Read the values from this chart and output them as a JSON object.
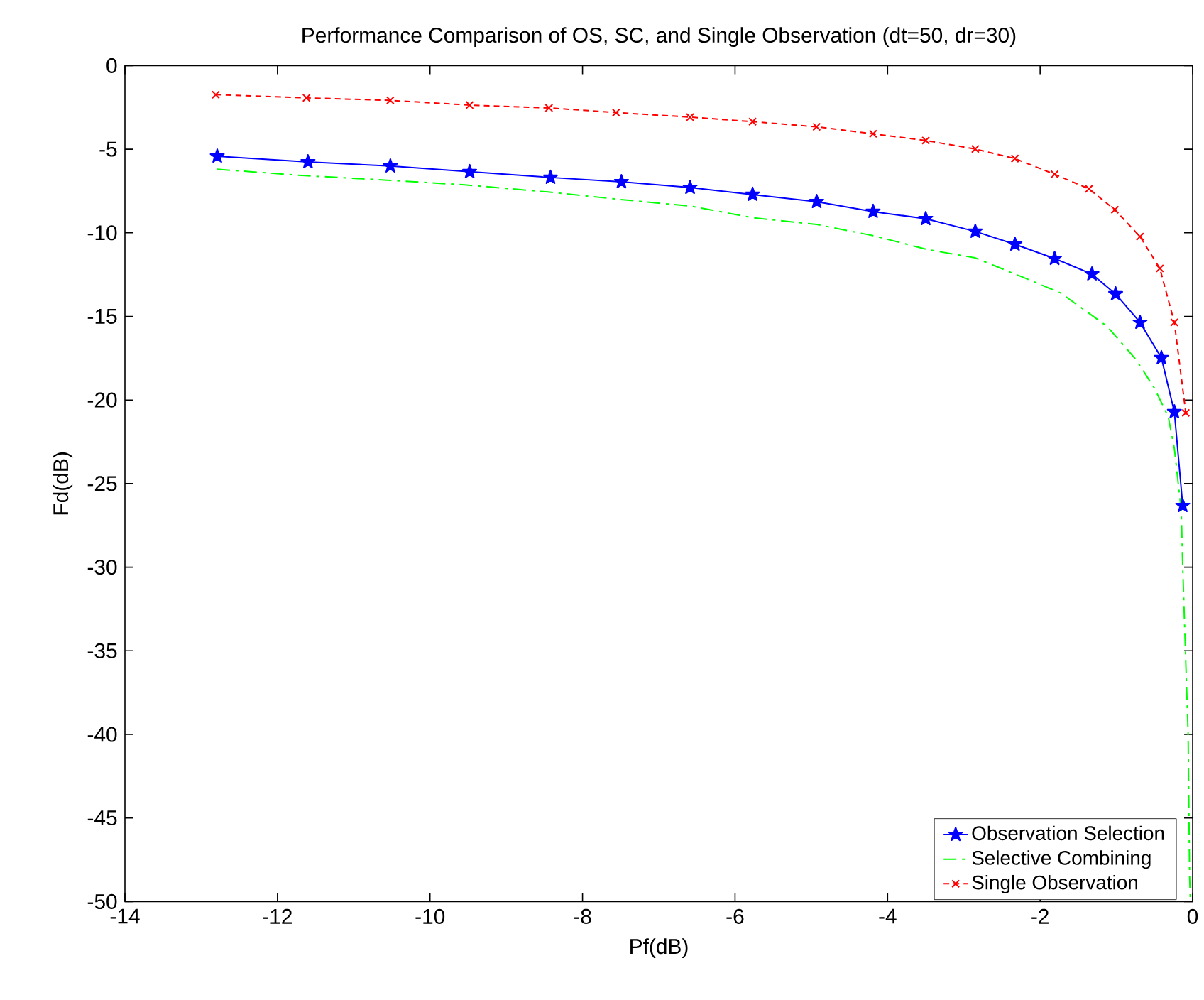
{
  "chart_data": {
    "type": "line",
    "title": "Performance Comparison of OS, SC, and Single Observation (dt=50, dr=30)",
    "xlabel": "Pf(dB)",
    "ylabel": "Fd(dB)",
    "xlim": [
      -14,
      0
    ],
    "ylim": [
      -50,
      0
    ],
    "xticks": [
      -14,
      -12,
      -10,
      -8,
      -6,
      -4,
      -2,
      0
    ],
    "yticks": [
      -50,
      -45,
      -40,
      -35,
      -30,
      -25,
      -20,
      -15,
      -10,
      -5,
      0
    ],
    "grid": false,
    "legend": "bottom right",
    "series": [
      {
        "name": "Observation Selection",
        "color": "#0000ff",
        "marker": "star",
        "line_style": "solid",
        "x": [
          -12.79,
          -11.6,
          -10.52,
          -9.48,
          -8.42,
          -7.49,
          -6.59,
          -5.77,
          -4.93,
          -4.19,
          -3.5,
          -2.85,
          -2.33,
          -1.81,
          -1.32,
          -1.01,
          -0.69,
          -0.41,
          -0.24,
          -0.13
        ],
        "values": [
          -5.42,
          -5.76,
          -6.01,
          -6.35,
          -6.69,
          -6.95,
          -7.29,
          -7.71,
          -8.14,
          -8.73,
          -9.16,
          -9.92,
          -10.69,
          -11.54,
          -12.47,
          -13.66,
          -15.36,
          -17.48,
          -20.71,
          -26.32
        ]
      },
      {
        "name": "Selective Combining",
        "color": "#00ff00",
        "marker": "none",
        "line_style": "dashdot",
        "x": [
          -12.79,
          -11.68,
          -10.56,
          -9.52,
          -8.45,
          -7.52,
          -6.59,
          -5.77,
          -4.93,
          -4.19,
          -3.48,
          -2.85,
          -2.23,
          -1.73,
          -1.12,
          -0.74,
          -0.5,
          -0.32,
          -0.24,
          -0.15,
          -0.13,
          -0.09,
          -0.06,
          -0.04,
          -0.03
        ],
        "values": [
          -6.2,
          -6.57,
          -6.85,
          -7.14,
          -7.56,
          -8.0,
          -8.4,
          -9.1,
          -9.5,
          -10.17,
          -11.0,
          -11.5,
          -12.65,
          -13.6,
          -15.6,
          -17.6,
          -19.3,
          -21.0,
          -22.9,
          -26.6,
          -30.0,
          -35.7,
          -39.9,
          -48.5,
          -50
        ]
      },
      {
        "name": "Single Observation",
        "color": "#ff0000",
        "marker": "cross",
        "line_style": "dashed",
        "x": [
          -12.81,
          -11.62,
          -10.52,
          -9.48,
          -8.44,
          -7.56,
          -6.59,
          -5.77,
          -4.93,
          -4.19,
          -3.5,
          -2.85,
          -2.33,
          -1.81,
          -1.36,
          -1.02,
          -0.69,
          -0.43,
          -0.24,
          -0.09
        ],
        "values": [
          -1.74,
          -1.93,
          -2.08,
          -2.36,
          -2.53,
          -2.81,
          -3.08,
          -3.35,
          -3.66,
          -4.08,
          -4.48,
          -4.99,
          -5.56,
          -6.5,
          -7.37,
          -8.62,
          -10.23,
          -12.13,
          -15.36,
          -20.77
        ]
      }
    ]
  }
}
